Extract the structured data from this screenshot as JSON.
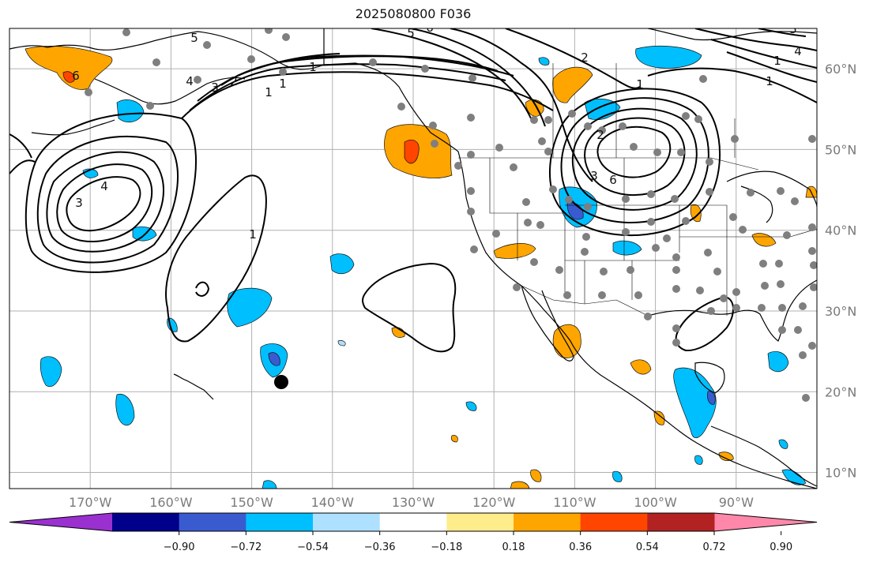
{
  "title": "2025080800 F036",
  "map": {
    "projection": "PlateCarree",
    "lon_range": [
      -180,
      -80
    ],
    "lat_range": [
      8,
      65
    ],
    "longitude_labels": [
      "170°W",
      "160°W",
      "150°W",
      "140°W",
      "130°W",
      "120°W",
      "110°W",
      "100°W",
      "90°W"
    ],
    "latitude_labels": [
      "60°N",
      "50°N",
      "40°N",
      "30°N",
      "20°N",
      "10°N"
    ],
    "gridlines": true,
    "contour_labels": [
      "6",
      "5",
      "4",
      "3",
      "2",
      "1",
      "1",
      "1",
      "1",
      "5",
      "6",
      "4",
      "3",
      "2",
      "1",
      "2",
      "3",
      "6",
      "5",
      "4",
      "1",
      "1"
    ],
    "station_marker": {
      "lon": -146,
      "lat": 21
    }
  },
  "colorbar": {
    "ticks": [
      "−0.90",
      "−0.72",
      "−0.54",
      "−0.36",
      "−0.18",
      "0.18",
      "0.36",
      "0.54",
      "0.72",
      "0.90"
    ],
    "colors": [
      "#9b30d0",
      "#00008b",
      "#3a5bd0",
      "#00bfff",
      "#aee0ff",
      "#ffffff",
      "#ffec8b",
      "#ffa500",
      "#ff4500",
      "#b22222",
      "#ff88aa"
    ],
    "placement": "bottom"
  }
}
